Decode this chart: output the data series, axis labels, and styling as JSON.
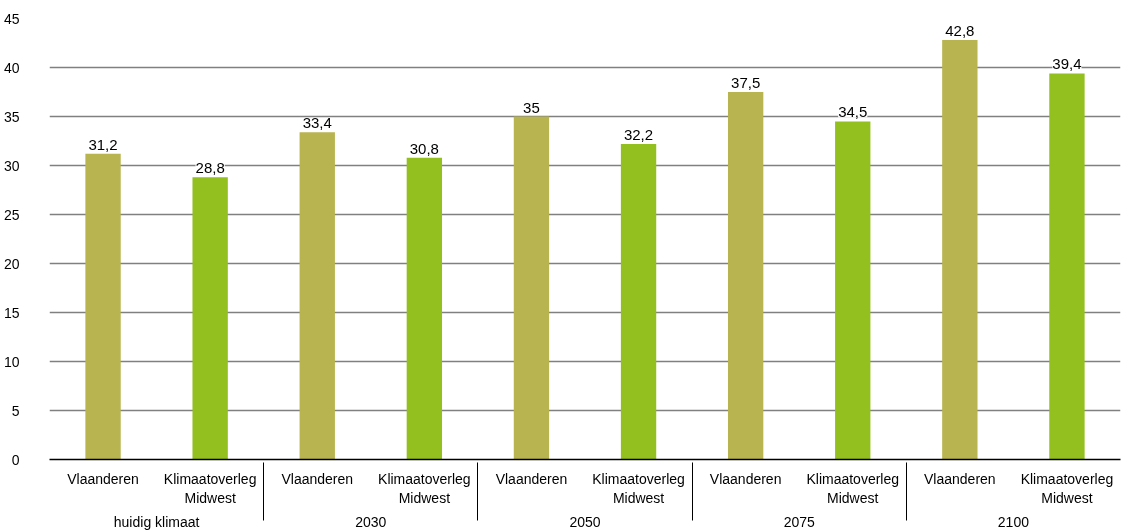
{
  "chart_data": {
    "type": "bar",
    "categories": [
      "Vlaanderen",
      "Klimaatoverleg Midwest",
      "Vlaanderen",
      "Klimaatoverleg Midwest",
      "Vlaanderen",
      "Klimaatoverleg Midwest",
      "Vlaanderen",
      "Klimaatoverleg Midwest",
      "Vlaanderen",
      "Klimaatoverleg Midwest"
    ],
    "values": [
      31.2,
      28.8,
      33.4,
      30.8,
      35,
      32.2,
      37.5,
      34.5,
      42.8,
      39.4
    ],
    "colors": [
      "#b8b450",
      "#93c01f",
      "#b8b450",
      "#93c01f",
      "#b8b450",
      "#93c01f",
      "#b8b450",
      "#93c01f",
      "#b8b450",
      "#93c01f"
    ],
    "value_labels": [
      "31,2",
      "28,8",
      "33,4",
      "30,8",
      "35",
      "32,2",
      "37,5",
      "34,5",
      "42,8",
      "39,4"
    ],
    "annotations": [
      "huidig klimaat",
      "2030",
      "2050",
      "2075",
      "2100"
    ],
    "ylim": [
      0,
      45
    ],
    "yticks": [
      0,
      5,
      10,
      15,
      20,
      25,
      30,
      35,
      40,
      45
    ],
    "grid": "y"
  }
}
